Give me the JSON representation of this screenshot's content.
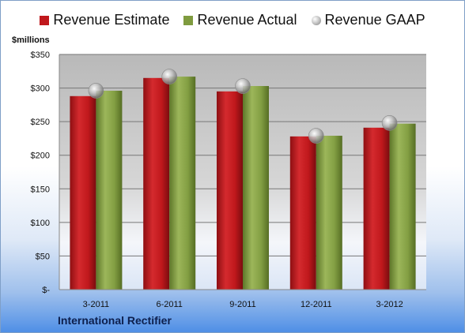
{
  "chart_data": {
    "type": "bar",
    "categories": [
      "3-2011",
      "6-2011",
      "9-2011",
      "12-2011",
      "3-2012"
    ],
    "series": [
      {
        "name": "Revenue Estimate",
        "values": [
          288,
          315,
          295,
          228,
          241
        ],
        "color": "#c0181c"
      },
      {
        "name": "Revenue Actual",
        "values": [
          296,
          317,
          303,
          229,
          247
        ],
        "color": "#7f9b3f"
      },
      {
        "name": "Revenue GAAP",
        "values": [
          296,
          317,
          303,
          229,
          248
        ],
        "color": "#9a9a9a",
        "marker": "sphere"
      }
    ],
    "ylim": [
      0,
      350
    ],
    "yticks": [
      {
        "value": 0,
        "label": "$-"
      },
      {
        "value": 50,
        "label": "$50"
      },
      {
        "value": 100,
        "label": "$100"
      },
      {
        "value": 150,
        "label": "$150"
      },
      {
        "value": 200,
        "label": "$200"
      },
      {
        "value": 250,
        "label": "$250"
      },
      {
        "value": 300,
        "label": "$300"
      },
      {
        "value": 350,
        "label": "$350"
      }
    ],
    "ylabel": "$millions",
    "grid": true,
    "legend_position": "top"
  },
  "footer": {
    "company": "International Rectifier"
  }
}
